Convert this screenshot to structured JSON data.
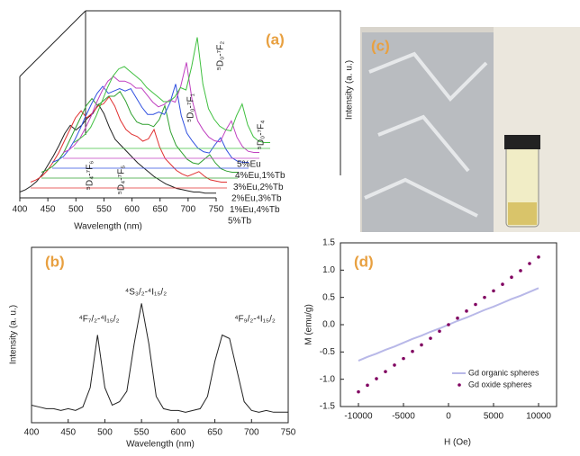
{
  "chart_data": [
    {
      "type": "waterfall",
      "label": "(a)",
      "xlabel": "Wavelength (nm)",
      "ylabel": "Intensity (a. u.)",
      "xlim": [
        400,
        750
      ],
      "xticks": [
        400,
        450,
        500,
        550,
        600,
        650,
        700,
        750
      ],
      "ylim": [
        0,
        1
      ],
      "annotations": [
        "⁵D₄-⁷F₆",
        "⁵D₄-⁷F₅",
        "⁵D₀-⁷F₁",
        "⁵D₀-⁷F₂",
        "⁵D₀-⁷F₄"
      ],
      "x": [
        400,
        410,
        420,
        430,
        440,
        450,
        460,
        470,
        480,
        490,
        500,
        510,
        520,
        530,
        540,
        550,
        560,
        570,
        580,
        590,
        600,
        610,
        620,
        630,
        640,
        650,
        660,
        670,
        680,
        690,
        700,
        710,
        720,
        730,
        740,
        750
      ],
      "series": [
        {
          "name": "5%Tb",
          "color": "#222222",
          "values": [
            0.05,
            0.07,
            0.1,
            0.14,
            0.2,
            0.28,
            0.36,
            0.45,
            0.55,
            0.62,
            0.58,
            0.62,
            0.68,
            0.72,
            0.8,
            0.72,
            0.6,
            0.5,
            0.45,
            0.4,
            0.35,
            0.3,
            0.26,
            0.22,
            0.18,
            0.15,
            0.12,
            0.1,
            0.08,
            0.07,
            0.06,
            0.05,
            0.05,
            0.04,
            0.04,
            0.04
          ]
        },
        {
          "name": "1%Eu,4%Tb",
          "color": "#e03030",
          "values": [
            0.05,
            0.07,
            0.1,
            0.15,
            0.22,
            0.3,
            0.4,
            0.5,
            0.6,
            0.66,
            0.6,
            0.64,
            0.7,
            0.72,
            0.78,
            0.7,
            0.58,
            0.5,
            0.46,
            0.44,
            0.4,
            0.42,
            0.5,
            0.35,
            0.25,
            0.2,
            0.15,
            0.12,
            0.1,
            0.12,
            0.14,
            0.1,
            0.07,
            0.06,
            0.05,
            0.05
          ]
        },
        {
          "name": "2%Eu,3%Tb",
          "color": "#30a030",
          "values": [
            0.05,
            0.07,
            0.1,
            0.15,
            0.22,
            0.32,
            0.42,
            0.52,
            0.62,
            0.68,
            0.62,
            0.66,
            0.7,
            0.7,
            0.74,
            0.66,
            0.55,
            0.48,
            0.46,
            0.46,
            0.44,
            0.5,
            0.62,
            0.4,
            0.28,
            0.22,
            0.16,
            0.13,
            0.12,
            0.16,
            0.2,
            0.13,
            0.08,
            0.06,
            0.05,
            0.05
          ]
        },
        {
          "name": "3%Eu,2%Tb",
          "color": "#3050e0",
          "values": [
            0.05,
            0.07,
            0.1,
            0.16,
            0.24,
            0.34,
            0.45,
            0.55,
            0.64,
            0.7,
            0.64,
            0.66,
            0.68,
            0.66,
            0.68,
            0.6,
            0.52,
            0.46,
            0.46,
            0.48,
            0.46,
            0.56,
            0.72,
            0.45,
            0.3,
            0.23,
            0.17,
            0.14,
            0.13,
            0.2,
            0.26,
            0.16,
            0.09,
            0.06,
            0.05,
            0.05
          ]
        },
        {
          "name": "4%Eu,1%Tb",
          "color": "#c040c0",
          "values": [
            0.05,
            0.07,
            0.11,
            0.17,
            0.26,
            0.36,
            0.48,
            0.58,
            0.66,
            0.7,
            0.66,
            0.66,
            0.64,
            0.6,
            0.6,
            0.54,
            0.48,
            0.44,
            0.46,
            0.5,
            0.48,
            0.62,
            0.82,
            0.5,
            0.32,
            0.24,
            0.18,
            0.15,
            0.14,
            0.24,
            0.32,
            0.18,
            0.1,
            0.06,
            0.05,
            0.05
          ]
        },
        {
          "name": "5%Eu",
          "color": "#40c040",
          "values": [
            0.05,
            0.08,
            0.12,
            0.18,
            0.28,
            0.4,
            0.52,
            0.62,
            0.68,
            0.7,
            0.66,
            0.62,
            0.58,
            0.52,
            0.48,
            0.44,
            0.4,
            0.4,
            0.44,
            0.52,
            0.5,
            0.7,
            0.95,
            0.55,
            0.34,
            0.25,
            0.19,
            0.16,
            0.15,
            0.28,
            0.38,
            0.2,
            0.1,
            0.06,
            0.05,
            0.05
          ]
        }
      ]
    },
    {
      "type": "line",
      "label": "(b)",
      "xlabel": "Wavelength (nm)",
      "ylabel": "Intensity (a. u.)",
      "color": "#222222",
      "xlim": [
        400,
        750
      ],
      "xticks": [
        400,
        450,
        500,
        550,
        600,
        650,
        700,
        750
      ],
      "ylim": [
        0,
        1
      ],
      "annotations": [
        "⁴F₇/₂-⁴I₁₅/₂",
        "⁴S₃/₂-⁴I₁₅/₂",
        "⁴F₉/₂-⁴I₁₅/₂"
      ],
      "x": [
        400,
        410,
        420,
        430,
        440,
        450,
        460,
        470,
        480,
        490,
        500,
        510,
        520,
        530,
        540,
        550,
        560,
        570,
        580,
        590,
        600,
        610,
        620,
        630,
        640,
        650,
        660,
        670,
        680,
        690,
        700,
        710,
        720,
        730,
        740,
        750
      ],
      "values": [
        0.1,
        0.09,
        0.08,
        0.08,
        0.07,
        0.08,
        0.07,
        0.09,
        0.2,
        0.5,
        0.2,
        0.1,
        0.12,
        0.18,
        0.45,
        0.68,
        0.45,
        0.15,
        0.08,
        0.07,
        0.07,
        0.06,
        0.07,
        0.08,
        0.15,
        0.35,
        0.5,
        0.48,
        0.3,
        0.12,
        0.07,
        0.06,
        0.07,
        0.06,
        0.06,
        0.06
      ]
    },
    {
      "type": "line",
      "label": "(d)",
      "xlabel": "H (Oe)",
      "ylabel": "M (emu/g)",
      "xlim": [
        -12000,
        12000
      ],
      "xticks": [
        -10000,
        -5000,
        0,
        5000,
        10000
      ],
      "ylim": [
        -1.5,
        1.5
      ],
      "yticks": [
        -1.5,
        {
          "value": -1,
          "label": "-1.0"
        },
        -0.5,
        {
          "value": 0,
          "label": "0.0"
        },
        0.5,
        {
          "value": 1,
          "label": "1.0"
        },
        1.5
      ],
      "x": [
        -10000,
        -9000,
        -8000,
        -7000,
        -6000,
        -5000,
        -4000,
        -3000,
        -2000,
        -1000,
        0,
        1000,
        2000,
        3000,
        4000,
        5000,
        6000,
        7000,
        8000,
        9000,
        10000
      ],
      "series": [
        {
          "name": "Gd organic spheres",
          "color": "#b8b8e8",
          "style": "line",
          "values": [
            -0.66,
            -0.59,
            -0.53,
            -0.46,
            -0.4,
            -0.33,
            -0.26,
            -0.2,
            -0.13,
            -0.07,
            0,
            0.07,
            0.13,
            0.2,
            0.27,
            0.33,
            0.4,
            0.47,
            0.53,
            0.6,
            0.67
          ]
        },
        {
          "name": "Gd oxide spheres",
          "color": "#800060",
          "style": "markers",
          "values": [
            -1.23,
            -1.11,
            -0.99,
            -0.86,
            -0.74,
            -0.62,
            -0.49,
            -0.37,
            -0.25,
            -0.12,
            0,
            0.12,
            0.25,
            0.37,
            0.5,
            0.62,
            0.74,
            0.87,
            0.99,
            1.12,
            1.24
          ]
        }
      ]
    }
  ],
  "photo": {
    "label": "(c)"
  }
}
